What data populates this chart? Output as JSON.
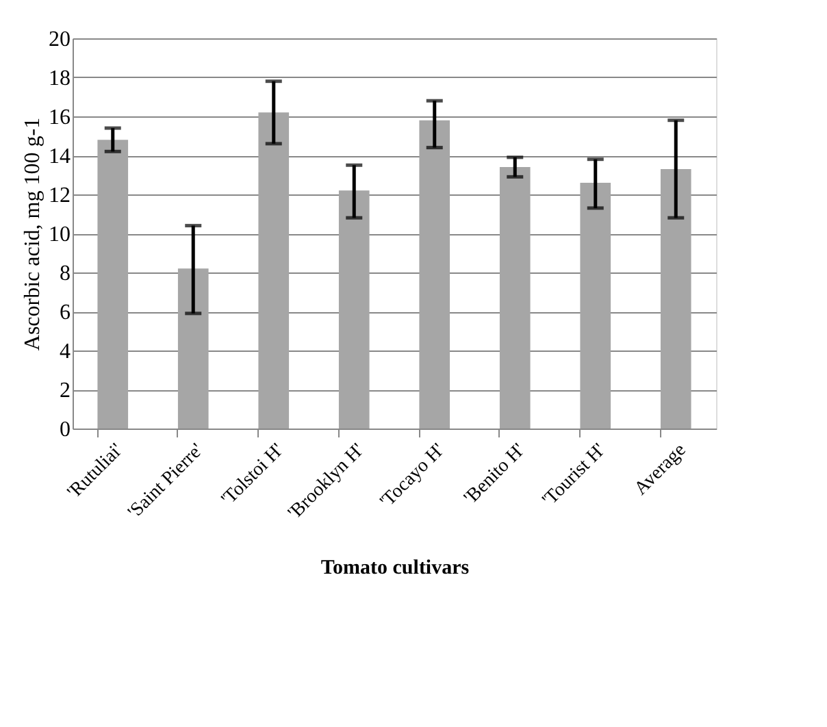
{
  "chart_data": {
    "type": "bar",
    "xlabel": "Tomato cultivars",
    "ylabel": "Ascorbic acid,  mg 100 g-1",
    "categories": [
      "'Rutuliai'",
      "'Saint Pierre'",
      "'Tolstoi H'",
      "'Brooklyn H'",
      "'Tocayo H'",
      "'Benito H'",
      "'Tourist H'",
      "Average"
    ],
    "values": [
      14.8,
      8.2,
      16.2,
      12.2,
      15.8,
      13.4,
      12.6,
      13.3
    ],
    "errors": [
      [
        14.2,
        15.4
      ],
      [
        5.9,
        10.4
      ],
      [
        14.6,
        17.8
      ],
      [
        10.8,
        13.5
      ],
      [
        14.4,
        16.8
      ],
      [
        12.9,
        13.9
      ],
      [
        11.3,
        13.8
      ],
      [
        10.8,
        15.8
      ]
    ],
    "color": "#a6a6a6",
    "ylim": [
      0,
      20
    ],
    "yticks": [
      0,
      2,
      4,
      6,
      8,
      10,
      12,
      14,
      16,
      18,
      20
    ],
    "grid": "y"
  }
}
